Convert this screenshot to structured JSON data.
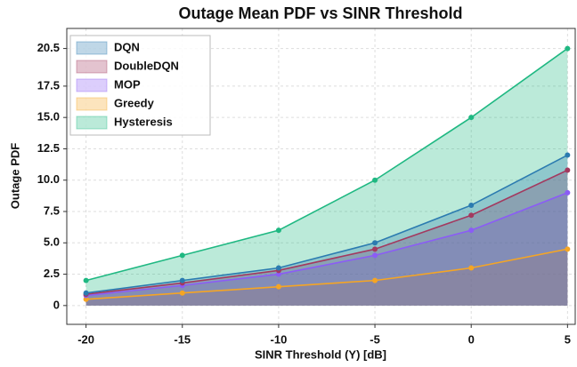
{
  "chart_data": {
    "type": "area",
    "title": "Outage Mean PDF vs SINR Threshold",
    "xlabel": "SINR Threshold (Y) [dB]",
    "ylabel": "Outage PDF",
    "x": [
      -20,
      -15,
      -10,
      -5,
      0,
      5
    ],
    "series": [
      {
        "name": "DQN",
        "color": "#2b7bb0",
        "values": [
          1,
          2,
          3,
          5,
          8,
          12
        ]
      },
      {
        "name": "DoubleDQN",
        "color": "#a3395f",
        "values": [
          0.9,
          1.8,
          2.8,
          4.5,
          7.2,
          10.8
        ]
      },
      {
        "name": "MOP",
        "color": "#8b5cf6",
        "values": [
          0.8,
          1.6,
          2.5,
          4,
          6,
          9
        ]
      },
      {
        "name": "Greedy",
        "color": "#f5a524",
        "values": [
          0.5,
          1,
          1.5,
          2,
          3,
          4.5
        ]
      },
      {
        "name": "Hysteresis",
        "color": "#1fb882",
        "values": [
          2,
          4,
          6,
          10,
          15,
          20.5
        ]
      }
    ],
    "xlim": [
      -21,
      5.4
    ],
    "ylim": [
      -1.5,
      22.1
    ],
    "xticks": [
      -20,
      -15,
      -10,
      -5,
      0,
      5
    ],
    "yticks": [
      0,
      2.5,
      {
        "value": 5,
        "label": "5.0"
      },
      7.5,
      {
        "value": 10,
        "label": "10.0"
      },
      12.5,
      {
        "value": 15,
        "label": "15.0"
      },
      17.5,
      20.5
    ],
    "grid": true,
    "legend": "upper left"
  }
}
